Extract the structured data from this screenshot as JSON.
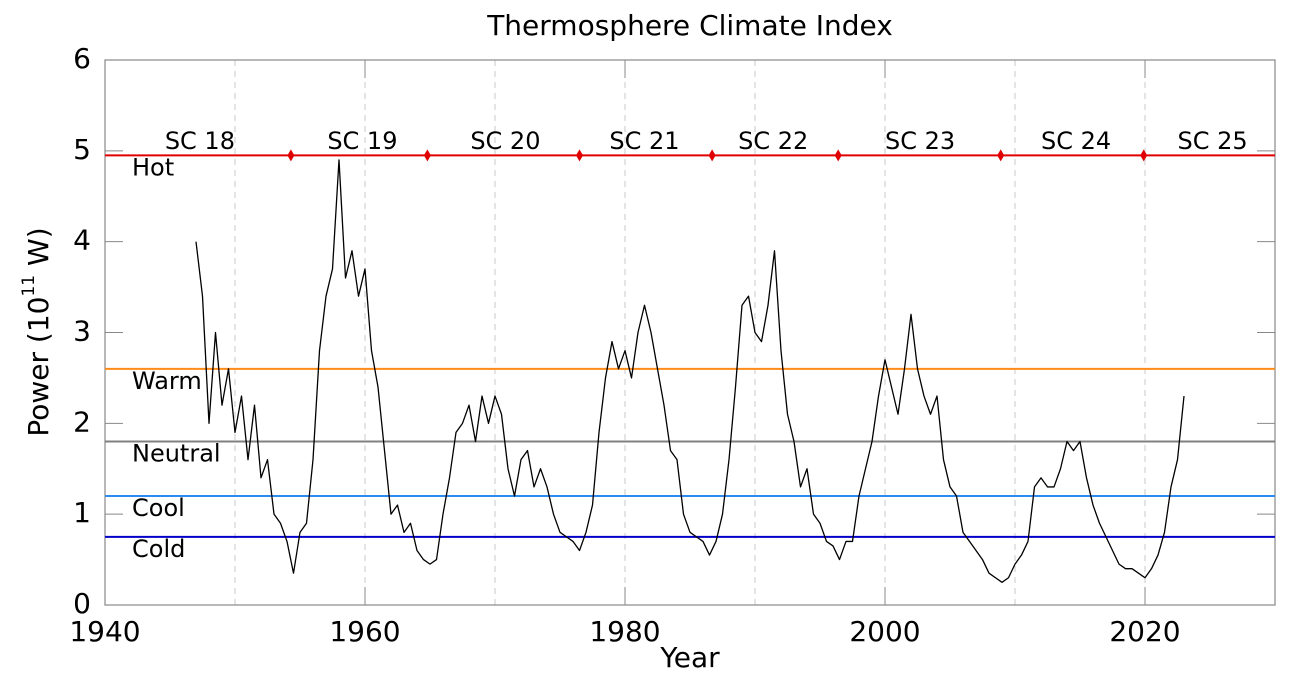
{
  "chart_data": {
    "type": "line",
    "title": "Thermosphere Climate Index",
    "xlabel": "Year",
    "ylabel": [
      "Power (10",
      "11",
      " W)"
    ],
    "xlim": [
      1940,
      2030
    ],
    "ylim": [
      0,
      6
    ],
    "xticks": [
      1940,
      1960,
      1980,
      2000,
      2020
    ],
    "yticks": [
      0,
      1,
      2,
      3,
      4,
      5,
      6
    ],
    "xgrid": [
      1950,
      1960,
      1970,
      1980,
      1990,
      2000,
      2010,
      2020
    ],
    "series": [
      {
        "color": "#000000",
        "x": [
          1947.0,
          1947.5,
          1948.0,
          1948.5,
          1949.0,
          1949.5,
          1950.0,
          1950.5,
          1951.0,
          1951.5,
          1952.0,
          1952.5,
          1953.0,
          1953.5,
          1954.0,
          1954.5,
          1955.0,
          1955.5,
          1956.0,
          1956.5,
          1957.0,
          1957.5,
          1958.0,
          1958.5,
          1959.0,
          1959.5,
          1960.0,
          1960.5,
          1961.0,
          1961.5,
          1962.0,
          1962.5,
          1963.0,
          1963.5,
          1964.0,
          1964.5,
          1965.0,
          1965.5,
          1966.0,
          1966.5,
          1967.0,
          1967.5,
          1968.0,
          1968.5,
          1969.0,
          1969.5,
          1970.0,
          1970.5,
          1971.0,
          1971.5,
          1972.0,
          1972.5,
          1973.0,
          1973.5,
          1974.0,
          1974.5,
          1975.0,
          1975.5,
          1976.0,
          1976.5,
          1977.0,
          1977.5,
          1978.0,
          1978.5,
          1979.0,
          1979.5,
          1980.0,
          1980.5,
          1981.0,
          1981.5,
          1982.0,
          1982.5,
          1983.0,
          1983.5,
          1984.0,
          1984.5,
          1985.0,
          1985.5,
          1986.0,
          1986.5,
          1987.0,
          1987.5,
          1988.0,
          1988.5,
          1989.0,
          1989.5,
          1990.0,
          1990.5,
          1991.0,
          1991.5,
          1992.0,
          1992.5,
          1993.0,
          1993.5,
          1994.0,
          1994.5,
          1995.0,
          1995.5,
          1996.0,
          1996.5,
          1997.0,
          1997.5,
          1998.0,
          1998.5,
          1999.0,
          1999.5,
          2000.0,
          2000.5,
          2001.0,
          2001.5,
          2002.0,
          2002.5,
          2003.0,
          2003.5,
          2004.0,
          2004.5,
          2005.0,
          2005.5,
          2006.0,
          2006.5,
          2007.0,
          2007.5,
          2008.0,
          2008.5,
          2009.0,
          2009.5,
          2010.0,
          2010.5,
          2011.0,
          2011.5,
          2012.0,
          2012.5,
          2013.0,
          2013.5,
          2014.0,
          2014.5,
          2015.0,
          2015.5,
          2016.0,
          2016.5,
          2017.0,
          2017.5,
          2018.0,
          2018.5,
          2019.0,
          2019.5,
          2020.0,
          2020.5,
          2021.0,
          2021.5,
          2022.0,
          2022.5,
          2023.0
        ],
        "values": [
          4.0,
          3.4,
          2.0,
          3.0,
          2.2,
          2.6,
          1.9,
          2.3,
          1.6,
          2.2,
          1.4,
          1.6,
          1.0,
          0.9,
          0.7,
          0.35,
          0.8,
          0.9,
          1.6,
          2.8,
          3.4,
          3.7,
          4.9,
          3.6,
          3.9,
          3.4,
          3.7,
          2.8,
          2.4,
          1.7,
          1.0,
          1.1,
          0.8,
          0.9,
          0.6,
          0.5,
          0.45,
          0.5,
          1.0,
          1.4,
          1.9,
          2.0,
          2.2,
          1.8,
          2.3,
          2.0,
          2.3,
          2.1,
          1.5,
          1.2,
          1.6,
          1.7,
          1.3,
          1.5,
          1.3,
          1.0,
          0.8,
          0.75,
          0.7,
          0.6,
          0.8,
          1.1,
          1.9,
          2.5,
          2.9,
          2.6,
          2.8,
          2.5,
          3.0,
          3.3,
          3.0,
          2.6,
          2.2,
          1.7,
          1.6,
          1.0,
          0.8,
          0.75,
          0.7,
          0.55,
          0.7,
          1.0,
          1.6,
          2.4,
          3.3,
          3.4,
          3.0,
          2.9,
          3.3,
          3.9,
          2.8,
          2.1,
          1.8,
          1.3,
          1.5,
          1.0,
          0.9,
          0.7,
          0.65,
          0.5,
          0.7,
          0.7,
          1.2,
          1.5,
          1.8,
          2.3,
          2.7,
          2.4,
          2.1,
          2.6,
          3.2,
          2.6,
          2.3,
          2.1,
          2.3,
          1.6,
          1.3,
          1.2,
          0.8,
          0.7,
          0.6,
          0.5,
          0.35,
          0.3,
          0.25,
          0.3,
          0.45,
          0.55,
          0.7,
          1.3,
          1.4,
          1.3,
          1.3,
          1.5,
          1.8,
          1.7,
          1.8,
          1.4,
          1.1,
          0.9,
          0.75,
          0.6,
          0.45,
          0.4,
          0.4,
          0.35,
          0.3,
          0.4,
          0.55,
          0.8,
          1.3,
          1.6,
          2.3
        ]
      }
    ],
    "levels": [
      {
        "name": "Hot",
        "value": 4.95,
        "color": "#e00000"
      },
      {
        "name": "Warm",
        "value": 2.6,
        "color": "#ff8c1a"
      },
      {
        "name": "Neutral",
        "value": 1.8,
        "color": "#808080"
      },
      {
        "name": "Cool",
        "value": 1.2,
        "color": "#2b8cf0"
      },
      {
        "name": "Cold",
        "value": 0.75,
        "color": "#0000c8"
      }
    ],
    "cycle_boundaries": [
      1954.3,
      1964.8,
      1976.5,
      1986.7,
      1996.4,
      2008.9,
      2019.9
    ],
    "boundary_color": "#e00000",
    "cycles": [
      {
        "label": "SC 18",
        "x": 1947.3,
        "y": 5.1
      },
      {
        "label": "SC 19",
        "x": 1959.8,
        "y": 5.1
      },
      {
        "label": "SC 20",
        "x": 1970.8,
        "y": 5.1
      },
      {
        "label": "SC 21",
        "x": 1981.5,
        "y": 5.1
      },
      {
        "label": "SC 22",
        "x": 1991.4,
        "y": 5.1
      },
      {
        "label": "SC 23",
        "x": 2002.7,
        "y": 5.1
      },
      {
        "label": "SC 24",
        "x": 2014.7,
        "y": 5.1
      },
      {
        "label": "SC 25",
        "x": 2025.2,
        "y": 5.1
      }
    ]
  }
}
